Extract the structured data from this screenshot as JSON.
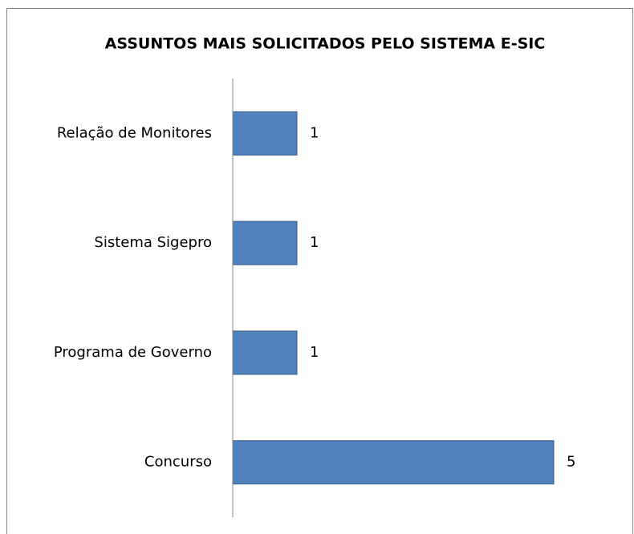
{
  "chart_data": {
    "type": "barh",
    "title": "ASSUNTOS MAIS SOLICITADOS PELO SISTEMA E-SIC",
    "categories": [
      "Relação de Monitores",
      "Sistema Sigepro",
      "Programa de Governo",
      "Concurso"
    ],
    "values": [
      1,
      1,
      1,
      5
    ],
    "color": "#4f81bd",
    "xlim": [
      0,
      6
    ]
  }
}
